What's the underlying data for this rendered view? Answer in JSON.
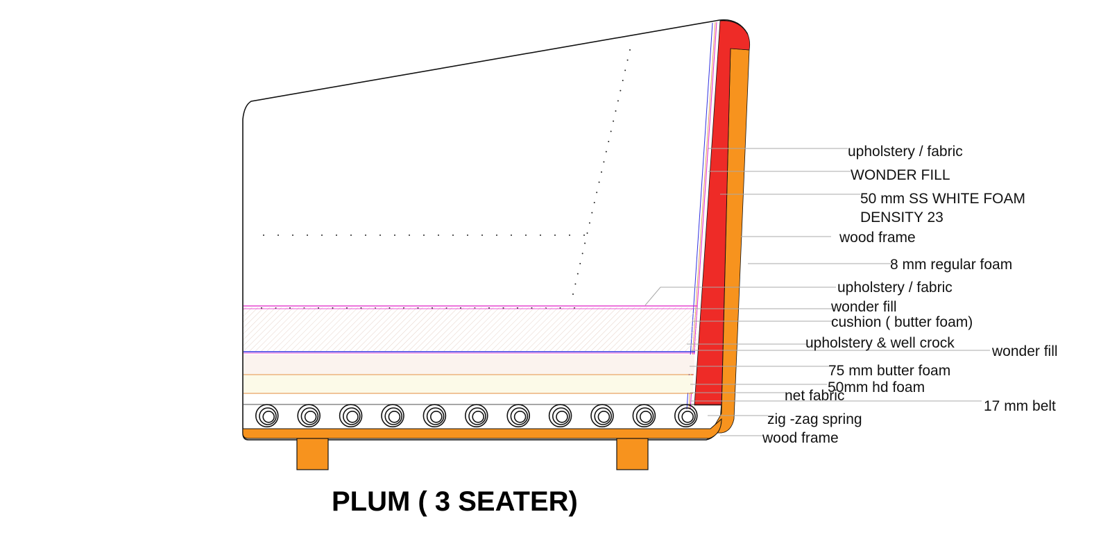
{
  "title": "PLUM ( 3 SEATER)",
  "colors": {
    "backrest_foam": "#EE2B27",
    "wood_frame": "#F7931E",
    "cushion_fill": "#F8EEE8",
    "seat_foam_fill": "#FCFAE8",
    "upholstery_line": "#E020C8",
    "upholstery_line_2": "#3030E0",
    "foam_layer_line": "#E08A30",
    "leader_line": "#A8A8A8"
  },
  "callouts": {
    "back_upholstery": "upholstery / fabric",
    "back_wonder_fill": "WONDER FILL",
    "back_foam_line1": "50 mm SS WHITE  FOAM",
    "back_foam_line2": "DENSITY 23",
    "back_wood_frame": "wood frame",
    "back_regular_foam": "8 mm regular  foam",
    "seat_upholstery": "upholstery / fabric",
    "seat_wonder_fill": "wonder fill",
    "cushion": "cushion ( butter foam)",
    "upholstery_well_crock": "upholstery & well crock",
    "side_wonder_fill": "wonder fill",
    "butter_foam": "75 mm butter foam",
    "hd_foam": "50mm hd foam",
    "net_fabric": "net fabric",
    "belt": "17 mm belt",
    "spring": "zig -zag spring",
    "base_wood_frame": "wood frame"
  },
  "springs": {
    "count": 11,
    "icon": "coil-spring-icon"
  }
}
